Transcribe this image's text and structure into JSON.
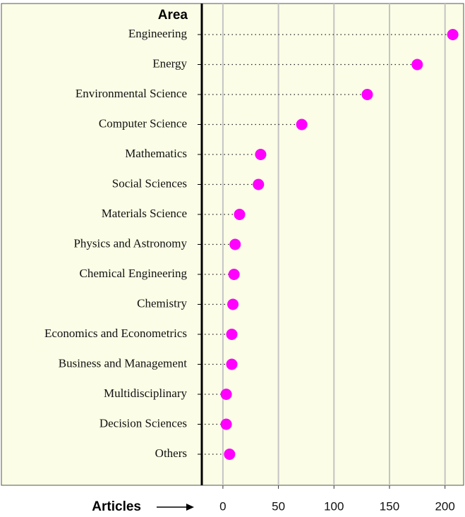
{
  "chart_data": {
    "type": "dot",
    "y_label": "Area",
    "x_label": "Articles",
    "categories": [
      "Engineering",
      "Energy",
      "Environmental Science",
      "Computer Science",
      "Mathematics",
      "Social Sciences",
      "Materials Science",
      "Physics and Astronomy",
      "Chemical Engineering",
      "Chemistry",
      "Economics and Econometrics",
      "Business and  Management",
      "Multidisciplinary",
      "Decision Sciences",
      "Others"
    ],
    "values": [
      207,
      175,
      130,
      71,
      34,
      32,
      15,
      11,
      10,
      9,
      8,
      8,
      3,
      3,
      6
    ],
    "color": "#ff00ff",
    "xlim": [
      -19,
      218
    ],
    "xticks": [
      0,
      50,
      100,
      150,
      200
    ],
    "grid": true
  }
}
